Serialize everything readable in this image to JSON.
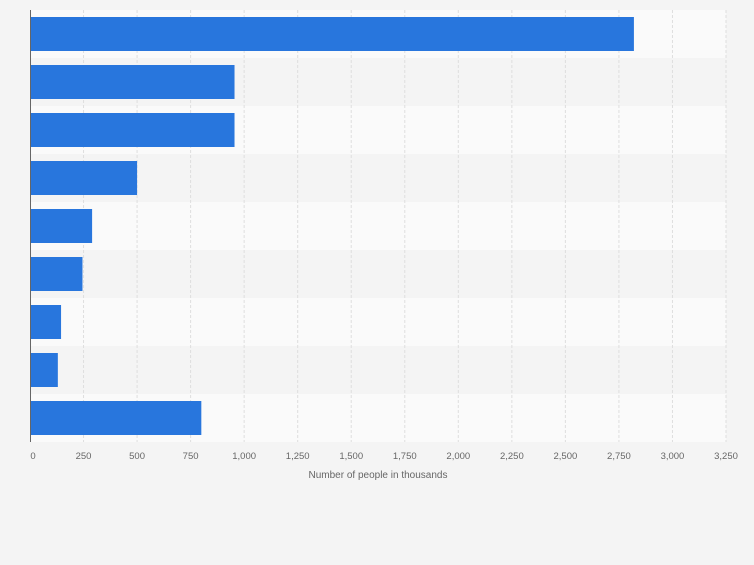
{
  "chart_data": {
    "type": "bar",
    "orientation": "horizontal",
    "categories": [
      "",
      "",
      "",
      "",
      "",
      "",
      "",
      "",
      ""
    ],
    "values": [
      2820,
      955,
      955,
      500,
      290,
      245,
      145,
      130,
      800
    ],
    "xlabel": "Number of people in thousands",
    "ylabel": "",
    "xlim": [
      0,
      3250
    ],
    "x_ticks": [
      0,
      250,
      500,
      750,
      1000,
      1250,
      1500,
      1750,
      2000,
      2250,
      2500,
      2750,
      3000,
      3250
    ],
    "x_tick_labels": [
      "0",
      "250",
      "500",
      "750",
      "1,000",
      "1,250",
      "1,500",
      "1,750",
      "2,000",
      "2,250",
      "2,500",
      "2,750",
      "3,000",
      "3,250"
    ],
    "grid": true,
    "legend": "none",
    "colors": {
      "bar": "#2876dd",
      "background": "#f4f4f4",
      "band_light": "#fafafa",
      "band_dark": "#f4f4f4",
      "grid": "#dedede",
      "axis": "#666666",
      "text": "#666666"
    }
  }
}
